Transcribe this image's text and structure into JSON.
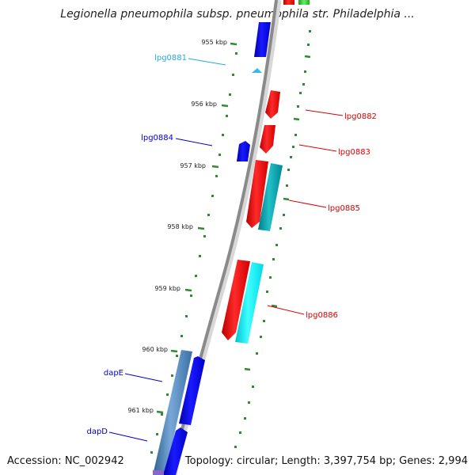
{
  "title": "Legionella pneumophila subsp. pneumophila str. Philadelphia ...",
  "footer": {
    "accession": "Accession: NC_002942",
    "summary": "Topology: circular; Length: 3,397,754 bp; Genes: 2,994"
  },
  "colors": {
    "backbone": "#8a8a8a",
    "tick": "#2e8b2e",
    "forward_gene": "#0000dd",
    "reverse_gene": "#ee0000",
    "cyan_gene": "#00e5ee",
    "teal_gene": "#009aa8",
    "steel_gene": "#4a7fb0",
    "light_blue_gene": "#33bbee",
    "green_gene": "#33cc33"
  },
  "ticks": [
    {
      "label": "955 kbp"
    },
    {
      "label": "956 kbp"
    },
    {
      "label": "957 kbp"
    },
    {
      "label": "958 kbp"
    },
    {
      "label": "959 kbp"
    },
    {
      "label": "960 kbp"
    },
    {
      "label": "961 kbp"
    }
  ],
  "gene_labels": [
    {
      "text": "lpg0881",
      "color": "#22aadd"
    },
    {
      "text": "lpg0884",
      "color": "#0000cc"
    },
    {
      "text": "dapE",
      "color": "#0000cc"
    },
    {
      "text": "dapD",
      "color": "#0000cc"
    },
    {
      "text": "lpg0882",
      "color": "#dd0000"
    },
    {
      "text": "lpg0883",
      "color": "#dd0000"
    },
    {
      "text": "lpg0885",
      "color": "#dd0000"
    },
    {
      "text": "lpg0886",
      "color": "#dd0000"
    }
  ]
}
